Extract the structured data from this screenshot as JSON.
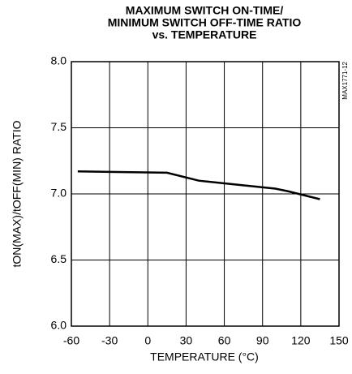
{
  "chart_data": {
    "type": "line",
    "title": [
      "MAXIMUM SWITCH ON-TIME/",
      "MINIMUM SWITCH OFF-TIME RATIO",
      "vs. TEMPERATURE"
    ],
    "x_label": "TEMPERATURE (°C)",
    "y_label": "tON(MAX)/tOFF(MIN) RATIO",
    "side_note": "MAX1771-12",
    "x": [
      -55,
      15,
      40,
      70,
      100,
      110,
      135
    ],
    "series": [
      {
        "name": null,
        "color": "#000000",
        "values": [
          7.17,
          7.16,
          7.1,
          7.07,
          7.04,
          7.02,
          6.96
        ]
      }
    ],
    "xlim": [
      -60,
      150
    ],
    "xticks": [
      -60,
      -30,
      0,
      30,
      60,
      90,
      120,
      150
    ],
    "ylim": [
      6,
      8
    ],
    "yticks": [
      {
        "value": 6,
        "label": "6.0"
      },
      {
        "value": 6.5,
        "label": "6.5"
      },
      {
        "value": 7,
        "label": "7.0"
      },
      {
        "value": 7.5,
        "label": "7.5"
      },
      {
        "value": 8,
        "label": "8.0"
      }
    ],
    "grid": true
  }
}
